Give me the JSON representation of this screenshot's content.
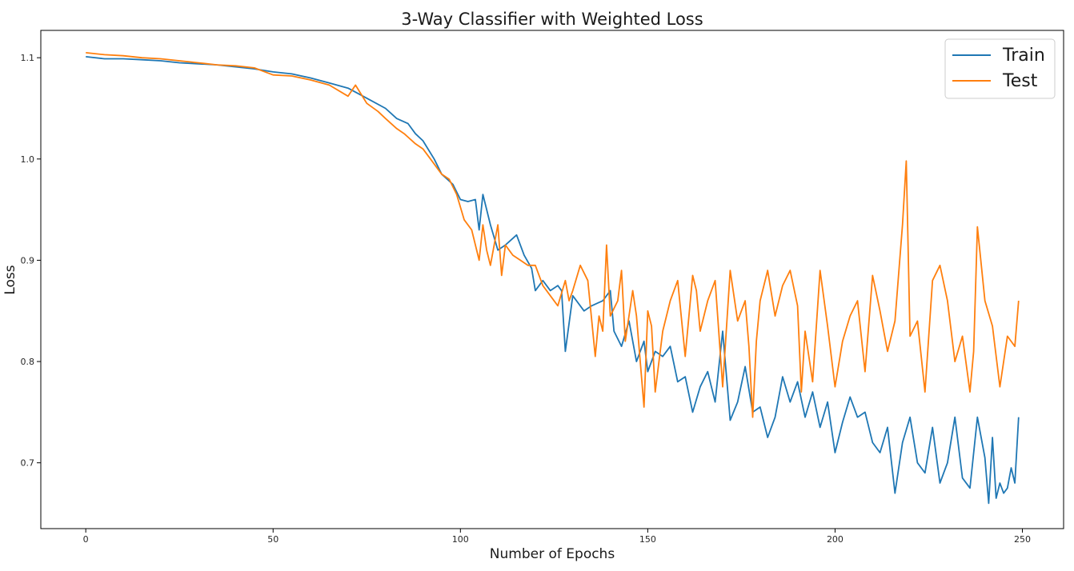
{
  "chart_data": {
    "type": "line",
    "title": "3-Way Classifier with Weighted Loss",
    "xlabel": "Number of Epochs",
    "ylabel": "Loss",
    "xlim": [
      -12,
      261
    ],
    "ylim": [
      0.635,
      1.127
    ],
    "xticks": [
      0,
      50,
      100,
      150,
      200,
      250
    ],
    "yticks": [
      0.7,
      0.8,
      0.9,
      1.0,
      1.1
    ],
    "ytick_labels": [
      "0.7",
      "0.8",
      "0.9",
      "1.0",
      "1.1"
    ],
    "grid": false,
    "legend_position": "top-right",
    "series": [
      {
        "name": "Train",
        "color": "#1f77b4",
        "x": [
          0,
          5,
          10,
          15,
          20,
          25,
          30,
          35,
          40,
          45,
          50,
          55,
          60,
          65,
          70,
          75,
          80,
          83,
          86,
          88,
          90,
          93,
          95,
          98,
          100,
          102,
          104,
          105,
          106,
          108,
          110,
          112,
          115,
          117,
          119,
          120,
          122,
          124,
          126,
          127,
          128,
          130,
          133,
          135,
          138,
          140,
          141,
          143,
          145,
          147,
          149,
          150,
          152,
          154,
          156,
          158,
          160,
          162,
          164,
          166,
          168,
          170,
          172,
          174,
          176,
          178,
          180,
          182,
          184,
          186,
          188,
          190,
          192,
          194,
          196,
          198,
          200,
          202,
          204,
          206,
          208,
          210,
          212,
          214,
          216,
          218,
          220,
          222,
          224,
          226,
          228,
          230,
          232,
          234,
          236,
          238,
          240,
          241,
          242,
          243,
          244,
          245,
          246,
          247,
          248,
          249
        ],
        "y": [
          1.101,
          1.099,
          1.099,
          1.098,
          1.097,
          1.095,
          1.094,
          1.093,
          1.091,
          1.089,
          1.086,
          1.084,
          1.08,
          1.075,
          1.07,
          1.06,
          1.05,
          1.04,
          1.035,
          1.025,
          1.018,
          1.0,
          0.985,
          0.975,
          0.96,
          0.958,
          0.96,
          0.93,
          0.965,
          0.935,
          0.91,
          0.915,
          0.925,
          0.905,
          0.892,
          0.87,
          0.88,
          0.87,
          0.875,
          0.87,
          0.81,
          0.865,
          0.85,
          0.855,
          0.86,
          0.87,
          0.83,
          0.815,
          0.84,
          0.8,
          0.82,
          0.79,
          0.81,
          0.805,
          0.815,
          0.78,
          0.785,
          0.75,
          0.775,
          0.79,
          0.76,
          0.83,
          0.742,
          0.76,
          0.795,
          0.75,
          0.755,
          0.725,
          0.745,
          0.785,
          0.76,
          0.78,
          0.745,
          0.77,
          0.735,
          0.76,
          0.71,
          0.74,
          0.765,
          0.745,
          0.75,
          0.72,
          0.71,
          0.735,
          0.67,
          0.72,
          0.745,
          0.7,
          0.69,
          0.735,
          0.68,
          0.7,
          0.745,
          0.685,
          0.675,
          0.745,
          0.705,
          0.66,
          0.725,
          0.665,
          0.68,
          0.67,
          0.675,
          0.695,
          0.68,
          0.745
        ]
      },
      {
        "name": "Test",
        "color": "#ff7f0e",
        "x": [
          0,
          5,
          10,
          15,
          20,
          25,
          30,
          35,
          40,
          45,
          50,
          55,
          60,
          65,
          70,
          72,
          75,
          78,
          80,
          83,
          85,
          88,
          90,
          92,
          95,
          97,
          99,
          101,
          103,
          105,
          106,
          107,
          108,
          110,
          111,
          112,
          114,
          116,
          118,
          120,
          122,
          124,
          126,
          128,
          129,
          130,
          132,
          134,
          136,
          137,
          138,
          139,
          140,
          142,
          143,
          144,
          146,
          147,
          148,
          149,
          150,
          151,
          152,
          154,
          156,
          158,
          160,
          162,
          163,
          164,
          166,
          168,
          170,
          172,
          174,
          176,
          177,
          178,
          179,
          180,
          182,
          184,
          186,
          188,
          190,
          191,
          192,
          194,
          196,
          198,
          200,
          202,
          204,
          206,
          208,
          210,
          212,
          214,
          216,
          218,
          219,
          220,
          222,
          224,
          226,
          228,
          230,
          232,
          234,
          236,
          237,
          238,
          240,
          242,
          244,
          246,
          248,
          249
        ],
        "y": [
          1.105,
          1.103,
          1.102,
          1.1,
          1.099,
          1.097,
          1.095,
          1.093,
          1.092,
          1.09,
          1.083,
          1.082,
          1.078,
          1.073,
          1.062,
          1.073,
          1.055,
          1.047,
          1.04,
          1.03,
          1.025,
          1.015,
          1.01,
          1.0,
          0.985,
          0.98,
          0.965,
          0.94,
          0.93,
          0.9,
          0.935,
          0.91,
          0.895,
          0.935,
          0.885,
          0.915,
          0.905,
          0.9,
          0.895,
          0.895,
          0.875,
          0.865,
          0.855,
          0.88,
          0.86,
          0.87,
          0.895,
          0.88,
          0.805,
          0.845,
          0.83,
          0.915,
          0.845,
          0.86,
          0.89,
          0.82,
          0.87,
          0.845,
          0.8,
          0.755,
          0.85,
          0.835,
          0.77,
          0.83,
          0.86,
          0.88,
          0.805,
          0.885,
          0.87,
          0.83,
          0.86,
          0.88,
          0.775,
          0.89,
          0.84,
          0.86,
          0.815,
          0.745,
          0.82,
          0.86,
          0.89,
          0.845,
          0.875,
          0.89,
          0.855,
          0.77,
          0.83,
          0.78,
          0.89,
          0.835,
          0.775,
          0.82,
          0.845,
          0.86,
          0.79,
          0.885,
          0.85,
          0.81,
          0.84,
          0.935,
          0.998,
          0.825,
          0.84,
          0.77,
          0.88,
          0.895,
          0.86,
          0.8,
          0.825,
          0.77,
          0.81,
          0.933,
          0.86,
          0.835,
          0.775,
          0.825,
          0.815,
          0.86
        ]
      }
    ]
  }
}
